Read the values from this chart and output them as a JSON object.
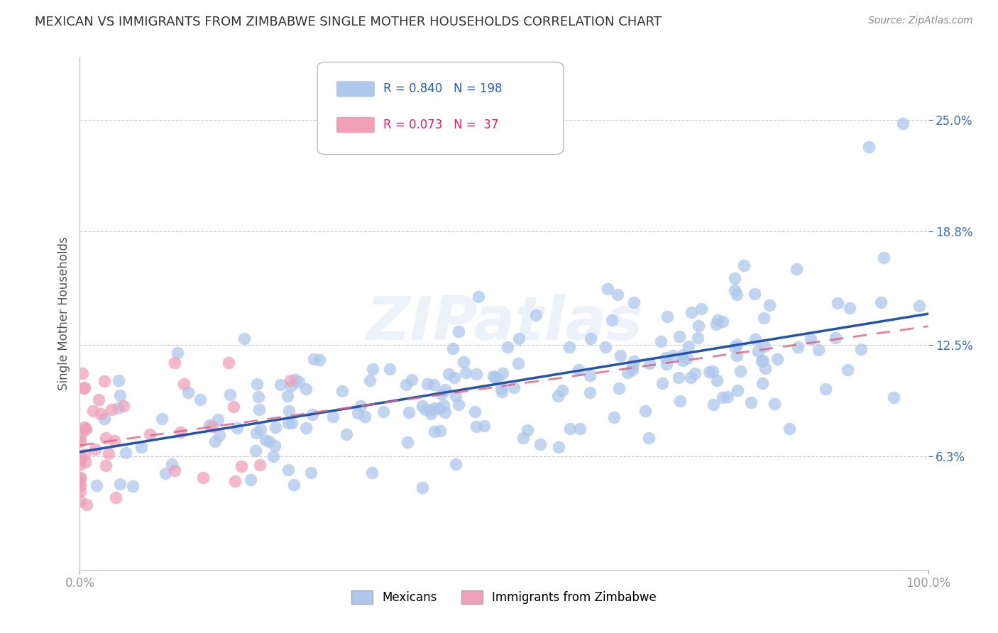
{
  "title": "MEXICAN VS IMMIGRANTS FROM ZIMBABWE SINGLE MOTHER HOUSEHOLDS CORRELATION CHART",
  "source": "Source: ZipAtlas.com",
  "ylabel": "Single Mother Households",
  "watermark": "ZIPatlas",
  "mexicans": {
    "R": 0.84,
    "N": 198,
    "color": "#adc8eb",
    "line_color": "#2255aa",
    "label": "Mexicans"
  },
  "zimbabwe": {
    "R": 0.073,
    "N": 37,
    "color": "#f0a0b8",
    "line_color": "#e06080",
    "label": "Immigrants from Zimbabwe"
  },
  "xlim": [
    0.0,
    1.0
  ],
  "ylim": [
    0.0,
    0.285
  ],
  "yticks": [
    0.063,
    0.125,
    0.188,
    0.25
  ],
  "ytick_labels": [
    "6.3%",
    "12.5%",
    "18.8%",
    "25.0%"
  ],
  "xticks": [
    0.0,
    1.0
  ],
  "xtick_labels": [
    "0.0%",
    "100.0%"
  ],
  "grid_color": "#cccccc",
  "background_color": "#ffffff",
  "title_fontsize": 13,
  "source_fontsize": 10,
  "axis_label_fontsize": 12,
  "tick_fontsize": 12
}
